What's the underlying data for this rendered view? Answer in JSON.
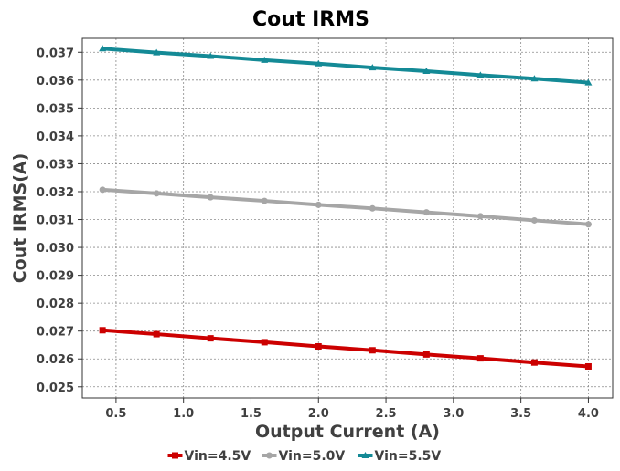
{
  "chart_data": {
    "type": "line",
    "title": "Cout IRMS",
    "xlabel": "Output Current (A)",
    "ylabel": "Cout IRMS(A)",
    "xlim": [
      0.25,
      4.18
    ],
    "ylim": [
      0.0246,
      0.0375
    ],
    "xticks": [
      0.5,
      1.0,
      1.5,
      2.0,
      2.5,
      3.0,
      3.5,
      4.0
    ],
    "xtick_labels": [
      "0.5",
      "1.0",
      "1.5",
      "2.0",
      "2.5",
      "3.0",
      "3.5",
      "4.0"
    ],
    "yticks": [
      0.025,
      0.026,
      0.027,
      0.028,
      0.029,
      0.03,
      0.031,
      0.032,
      0.033,
      0.034,
      0.035,
      0.036,
      0.037
    ],
    "ytick_labels": [
      "0.025",
      "0.026",
      "0.027",
      "0.028",
      "0.029",
      "0.030",
      "0.031",
      "0.032",
      "0.033",
      "0.034",
      "0.035",
      "0.036",
      "0.037"
    ],
    "grid": true,
    "legend_position": "bottom",
    "x": [
      0.4,
      0.8,
      1.2,
      1.6,
      2.0,
      2.4,
      2.8,
      3.2,
      3.6,
      4.0
    ],
    "series": [
      {
        "name": "Vin=4.5V",
        "color": "#cc0000",
        "marker": "square",
        "values": [
          0.02703,
          0.02689,
          0.02674,
          0.0266,
          0.02645,
          0.02631,
          0.02616,
          0.02602,
          0.02587,
          0.02573
        ]
      },
      {
        "name": "Vin=5.0V",
        "color": "#a6a6a6",
        "marker": "circle",
        "values": [
          0.03207,
          0.03194,
          0.0318,
          0.03167,
          0.03153,
          0.0314,
          0.03126,
          0.03112,
          0.03097,
          0.03083
        ]
      },
      {
        "name": "Vin=5.5V",
        "color": "#148a96",
        "marker": "triangle",
        "values": [
          0.03713,
          0.03699,
          0.03686,
          0.03672,
          0.03659,
          0.03645,
          0.03632,
          0.03618,
          0.03605,
          0.03591
        ]
      }
    ]
  }
}
